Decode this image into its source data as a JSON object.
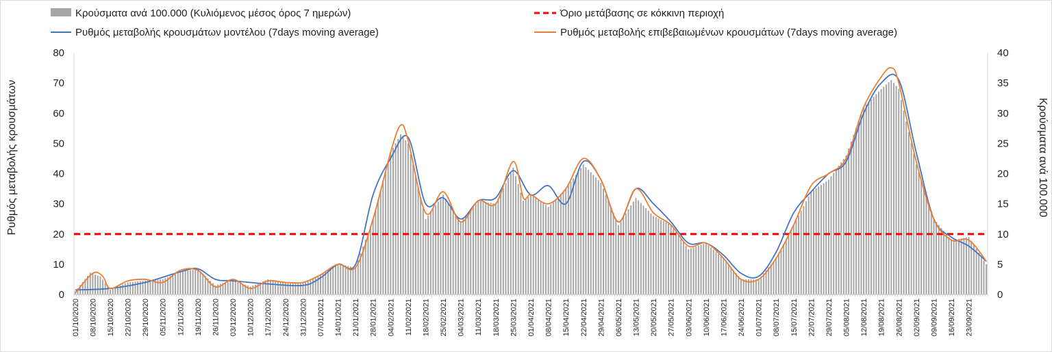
{
  "chart_data": {
    "type": "bar",
    "subtype": "bar-line-combo-dual-axis",
    "title": "",
    "ylabel_left": "Ρυθμός μεταβολής κρουσμάτων",
    "ylabel_right": "Κρούσματα ανά 100.000",
    "ylim_left": [
      0,
      80
    ],
    "ylim_right": [
      0,
      40
    ],
    "yticks_left": [
      "0",
      "10",
      "20",
      "30",
      "40",
      "50",
      "60",
      "70",
      "80"
    ],
    "yticks_right": [
      "0",
      "5",
      "10",
      "15",
      "20",
      "25",
      "30",
      "35",
      "40"
    ],
    "grid": false,
    "legend_position": "top",
    "x_start": "2020-10-01",
    "x_end": "2021-09-30",
    "x_tick_labels": [
      "01/10/2020",
      "08/10/2020",
      "15/10/2020",
      "22/10/2020",
      "29/10/2020",
      "05/11/2020",
      "12/11/2020",
      "19/11/2020",
      "26/11/2020",
      "03/12/2020",
      "10/12/2020",
      "17/12/2020",
      "24/12/2020",
      "31/12/2020",
      "07/01/2021",
      "14/01/2021",
      "21/01/2021",
      "28/01/2021",
      "04/02/2021",
      "11/02/2021",
      "18/02/2021",
      "25/02/2021",
      "04/03/2021",
      "11/03/2021",
      "18/03/2021",
      "25/03/2021",
      "01/04/2021",
      "08/04/2021",
      "15/04/2021",
      "22/04/2021",
      "29/04/2021",
      "06/05/2021",
      "13/05/2021",
      "20/05/2021",
      "27/05/2021",
      "03/06/2021",
      "10/06/2021",
      "17/06/2021",
      "24/06/2021",
      "01/07/2021",
      "08/07/2021",
      "15/07/2021",
      "22/07/2021",
      "29/07/2021",
      "05/08/2021",
      "12/08/2021",
      "19/08/2021",
      "26/08/2021",
      "02/09/2021",
      "09/09/2021",
      "16/09/2021",
      "23/09/2021"
    ],
    "series": [
      {
        "name": "Κρούσματα ανά 100.000 (Κυλιόμενος μέσος όρος 7 ημερών)",
        "type": "bar",
        "axis": "right",
        "color": "#a6a6a6",
        "points": [
          [
            "2020-10-01",
            0.5
          ],
          [
            "2020-10-07",
            3.6
          ],
          [
            "2020-10-11",
            3.0
          ],
          [
            "2020-10-15",
            0.8
          ],
          [
            "2020-10-22",
            2.0
          ],
          [
            "2020-10-29",
            2.3
          ],
          [
            "2020-11-05",
            2.5
          ],
          [
            "2020-11-12",
            3.8
          ],
          [
            "2020-11-19",
            4.2
          ],
          [
            "2020-11-26",
            1.5
          ],
          [
            "2020-12-03",
            2.4
          ],
          [
            "2020-12-10",
            1.3
          ],
          [
            "2020-12-17",
            2.5
          ],
          [
            "2020-12-24",
            2.0
          ],
          [
            "2020-12-31",
            2.0
          ],
          [
            "2021-01-07",
            3.3
          ],
          [
            "2021-01-14",
            5.0
          ],
          [
            "2021-01-21",
            4.5
          ],
          [
            "2021-01-28",
            12.5
          ],
          [
            "2021-02-04",
            23.5
          ],
          [
            "2021-02-08",
            26.5
          ],
          [
            "2021-02-11",
            25.0
          ],
          [
            "2021-02-18",
            12.5
          ],
          [
            "2021-02-25",
            16.5
          ],
          [
            "2021-03-04",
            12.0
          ],
          [
            "2021-03-11",
            15.5
          ],
          [
            "2021-03-18",
            15.0
          ],
          [
            "2021-03-25",
            21.0
          ],
          [
            "2021-03-29",
            15.5
          ],
          [
            "2021-04-01",
            16.5
          ],
          [
            "2021-04-08",
            14.5
          ],
          [
            "2021-04-15",
            17.5
          ],
          [
            "2021-04-22",
            21.5
          ],
          [
            "2021-04-29",
            18.5
          ],
          [
            "2021-05-06",
            11.5
          ],
          [
            "2021-05-13",
            16.0
          ],
          [
            "2021-05-20",
            13.0
          ],
          [
            "2021-05-27",
            11.5
          ],
          [
            "2021-06-03",
            7.5
          ],
          [
            "2021-06-10",
            8.5
          ],
          [
            "2021-06-17",
            6.0
          ],
          [
            "2021-06-24",
            2.5
          ],
          [
            "2021-07-01",
            2.5
          ],
          [
            "2021-07-08",
            6.0
          ],
          [
            "2021-07-15",
            11.5
          ],
          [
            "2021-07-22",
            17.0
          ],
          [
            "2021-07-29",
            19.0
          ],
          [
            "2021-08-05",
            23.0
          ],
          [
            "2021-08-12",
            31.0
          ],
          [
            "2021-08-19",
            34.0
          ],
          [
            "2021-08-23",
            35.5
          ],
          [
            "2021-08-26",
            34.0
          ],
          [
            "2021-09-02",
            21.5
          ],
          [
            "2021-09-09",
            12.5
          ],
          [
            "2021-09-16",
            9.0
          ],
          [
            "2021-09-23",
            9.5
          ],
          [
            "2021-09-30",
            5.0
          ]
        ]
      },
      {
        "name": "Όριο μετάβασης σε κόκκινη περιοχή",
        "type": "line",
        "dashed": true,
        "axis": "left",
        "color": "#ff0000",
        "value": 20
      },
      {
        "name": "Ρυθμός μεταβολής κρουσμάτων μοντέλου (7days moving average)",
        "type": "line",
        "axis": "left",
        "color": "#4472c4",
        "points": [
          [
            "2020-10-01",
            1.5
          ],
          [
            "2020-10-15",
            2.0
          ],
          [
            "2020-10-29",
            4.0
          ],
          [
            "2020-11-12",
            7.5
          ],
          [
            "2020-11-19",
            8.5
          ],
          [
            "2020-11-26",
            5.0
          ],
          [
            "2020-12-03",
            4.5
          ],
          [
            "2020-12-17",
            3.5
          ],
          [
            "2020-12-31",
            3.0
          ],
          [
            "2021-01-07",
            5.5
          ],
          [
            "2021-01-14",
            10.0
          ],
          [
            "2021-01-21",
            10.0
          ],
          [
            "2021-01-28",
            33.0
          ],
          [
            "2021-02-04",
            45.0
          ],
          [
            "2021-02-11",
            52.0
          ],
          [
            "2021-02-18",
            30.0
          ],
          [
            "2021-02-25",
            32.0
          ],
          [
            "2021-03-04",
            25.0
          ],
          [
            "2021-03-11",
            31.0
          ],
          [
            "2021-03-18",
            32.0
          ],
          [
            "2021-03-25",
            41.0
          ],
          [
            "2021-04-01",
            33.0
          ],
          [
            "2021-04-08",
            36.0
          ],
          [
            "2021-04-15",
            30.0
          ],
          [
            "2021-04-22",
            44.0
          ],
          [
            "2021-04-29",
            38.0
          ],
          [
            "2021-05-06",
            24.0
          ],
          [
            "2021-05-13",
            35.0
          ],
          [
            "2021-05-20",
            30.0
          ],
          [
            "2021-05-27",
            24.0
          ],
          [
            "2021-06-03",
            17.0
          ],
          [
            "2021-06-10",
            17.0
          ],
          [
            "2021-06-17",
            13.0
          ],
          [
            "2021-06-24",
            7.0
          ],
          [
            "2021-07-01",
            6.0
          ],
          [
            "2021-07-08",
            14.0
          ],
          [
            "2021-07-15",
            27.0
          ],
          [
            "2021-07-22",
            34.0
          ],
          [
            "2021-07-29",
            40.0
          ],
          [
            "2021-08-05",
            44.0
          ],
          [
            "2021-08-12",
            60.0
          ],
          [
            "2021-08-19",
            70.0
          ],
          [
            "2021-08-26",
            71.0
          ],
          [
            "2021-09-02",
            47.0
          ],
          [
            "2021-09-09",
            25.0
          ],
          [
            "2021-09-16",
            19.0
          ],
          [
            "2021-09-23",
            16.0
          ],
          [
            "2021-09-30",
            11.0
          ]
        ]
      },
      {
        "name": "Ρυθμός μεταβολής επιβεβαιωμένων κρουσμάτων (7days moving average)",
        "type": "line",
        "axis": "left",
        "color": "#ed7d31",
        "points": [
          [
            "2020-10-01",
            0.5
          ],
          [
            "2020-10-08",
            7.0
          ],
          [
            "2020-10-12",
            6.0
          ],
          [
            "2020-10-15",
            2.0
          ],
          [
            "2020-10-22",
            4.5
          ],
          [
            "2020-10-29",
            5.0
          ],
          [
            "2020-11-05",
            4.0
          ],
          [
            "2020-11-12",
            8.0
          ],
          [
            "2020-11-19",
            8.0
          ],
          [
            "2020-11-26",
            2.5
          ],
          [
            "2020-12-03",
            5.0
          ],
          [
            "2020-12-10",
            2.0
          ],
          [
            "2020-12-17",
            4.5
          ],
          [
            "2020-12-24",
            4.0
          ],
          [
            "2020-12-31",
            4.0
          ],
          [
            "2021-01-07",
            6.5
          ],
          [
            "2021-01-14",
            10.0
          ],
          [
            "2021-01-21",
            9.0
          ],
          [
            "2021-01-28",
            25.0
          ],
          [
            "2021-02-04",
            47.0
          ],
          [
            "2021-02-08",
            56.0
          ],
          [
            "2021-02-11",
            51.0
          ],
          [
            "2021-02-18",
            27.0
          ],
          [
            "2021-02-25",
            34.0
          ],
          [
            "2021-03-04",
            24.0
          ],
          [
            "2021-03-11",
            31.0
          ],
          [
            "2021-03-18",
            30.0
          ],
          [
            "2021-03-25",
            44.0
          ],
          [
            "2021-03-29",
            32.0
          ],
          [
            "2021-04-01",
            33.0
          ],
          [
            "2021-04-08",
            30.0
          ],
          [
            "2021-04-15",
            35.0
          ],
          [
            "2021-04-22",
            45.0
          ],
          [
            "2021-04-29",
            38.0
          ],
          [
            "2021-05-06",
            24.0
          ],
          [
            "2021-05-13",
            35.0
          ],
          [
            "2021-05-20",
            27.0
          ],
          [
            "2021-05-27",
            23.0
          ],
          [
            "2021-06-03",
            16.0
          ],
          [
            "2021-06-10",
            17.0
          ],
          [
            "2021-06-17",
            12.0
          ],
          [
            "2021-06-24",
            5.0
          ],
          [
            "2021-07-01",
            5.0
          ],
          [
            "2021-07-08",
            12.0
          ],
          [
            "2021-07-15",
            23.0
          ],
          [
            "2021-07-22",
            36.0
          ],
          [
            "2021-07-29",
            40.0
          ],
          [
            "2021-08-05",
            45.0
          ],
          [
            "2021-08-12",
            62.0
          ],
          [
            "2021-08-19",
            72.0
          ],
          [
            "2021-08-23",
            75.0
          ],
          [
            "2021-08-26",
            70.0
          ],
          [
            "2021-09-02",
            44.0
          ],
          [
            "2021-09-09",
            25.0
          ],
          [
            "2021-09-16",
            18.0
          ],
          [
            "2021-09-23",
            18.0
          ],
          [
            "2021-09-30",
            11.0
          ]
        ]
      }
    ]
  }
}
